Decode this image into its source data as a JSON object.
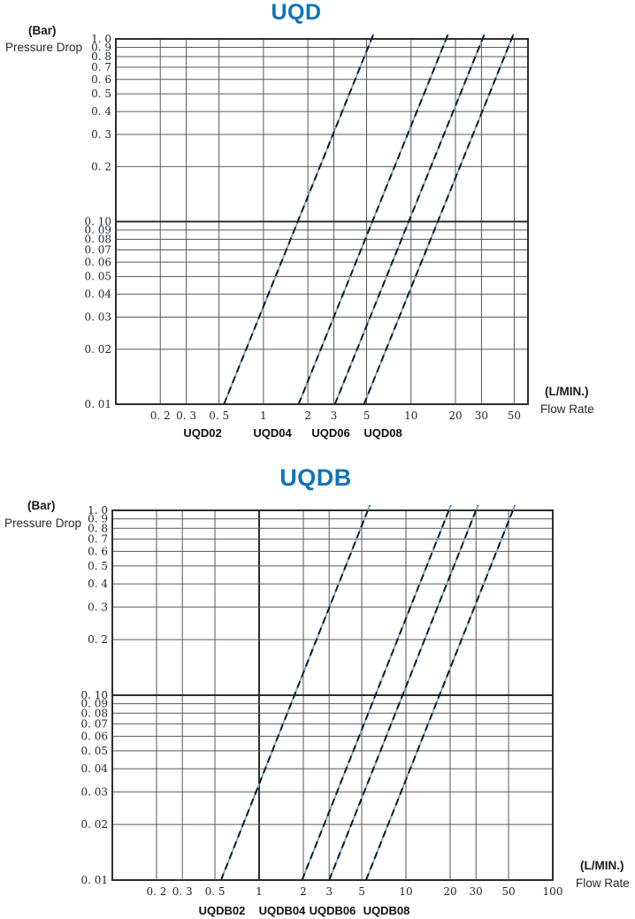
{
  "style": {
    "title_color": "#0e73ba",
    "grid_color": "#585858",
    "frame_color": "#2d2d2d",
    "tick_color": "#1f2430",
    "line_base_color": "#6ba6c8",
    "line_dash_color": "#17191c"
  },
  "chart_data": [
    {
      "type": "line",
      "title": "UQD",
      "x_scale": "log",
      "y_scale": "log",
      "xunit": "(L/MIN.)",
      "xlabel": "Flow Rate",
      "yunit": "(Bar)",
      "ylabel": "Pressure Drop",
      "xlim": [
        0.1,
        62
      ],
      "ylim": [
        0.01,
        1.0
      ],
      "grid": true,
      "x_ticks": [
        0.2,
        0.3,
        0.5,
        1,
        2,
        3,
        5,
        10,
        20,
        30,
        50
      ],
      "x_tick_labels": [
        "0. 2",
        "0. 3",
        "0. 5",
        "1",
        "2",
        "3",
        "5",
        "10",
        "20",
        "30",
        "50"
      ],
      "y_ticks": [
        1.0,
        0.9,
        0.8,
        0.7,
        0.6,
        0.5,
        0.4,
        0.3,
        0.2,
        0.1,
        0.09,
        0.08,
        0.07,
        0.06,
        0.05,
        0.04,
        0.03,
        0.02,
        0.01
      ],
      "y_tick_labels": [
        "1. 0",
        "0. 9",
        "0. 8",
        "0. 7",
        "0. 6",
        "0. 5",
        "0. 4",
        "0. 3",
        "0. 2",
        "0. 10",
        "0. 09",
        "0. 08",
        "0. 07",
        "0. 06",
        "0. 05",
        "0. 04",
        "0. 03",
        "0. 02",
        "0. 01"
      ],
      "bold_x_values": [],
      "bold_y_values": [
        0.1
      ],
      "series": [
        {
          "name": "UQD02",
          "points": [
            [
              0.54,
              0.01
            ],
            [
              5.4,
              1.0
            ]
          ]
        },
        {
          "name": "UQD04",
          "points": [
            [
              1.73,
              0.01
            ],
            [
              17.3,
              1.0
            ]
          ]
        },
        {
          "name": "UQD06",
          "points": [
            [
              3.05,
              0.01
            ],
            [
              30.5,
              1.0
            ]
          ]
        },
        {
          "name": "UQD08",
          "points": [
            [
              4.8,
              0.01
            ],
            [
              48.0,
              1.0
            ]
          ]
        }
      ]
    },
    {
      "type": "line",
      "title": "UQDB",
      "x_scale": "log",
      "y_scale": "log",
      "xunit": "(L/MIN.)",
      "xlabel": "Flow Rate",
      "yunit": "(Bar)",
      "ylabel": "Pressure Drop",
      "xlim": [
        0.1,
        100
      ],
      "ylim": [
        0.01,
        1.0
      ],
      "grid": true,
      "x_ticks": [
        0.2,
        0.3,
        0.5,
        1,
        2,
        3,
        5,
        10,
        20,
        30,
        50,
        100
      ],
      "x_tick_labels": [
        "0. 2",
        "0. 3",
        "0. 5",
        "1",
        "2",
        "3",
        "5",
        "10",
        "20",
        "30",
        "50",
        "100"
      ],
      "y_ticks": [
        1.0,
        0.9,
        0.8,
        0.7,
        0.6,
        0.5,
        0.4,
        0.3,
        0.2,
        0.1,
        0.09,
        0.08,
        0.07,
        0.06,
        0.05,
        0.04,
        0.03,
        0.02,
        0.01
      ],
      "y_tick_labels": [
        "1. 0",
        "0. 9",
        "0. 8",
        "0. 7",
        "0. 6",
        "0. 5",
        "0. 4",
        "0. 3",
        "0. 2",
        "0. 10",
        "0. 09",
        "0. 08",
        "0. 07",
        "0. 06",
        "0. 05",
        "0. 04",
        "0. 03",
        "0. 02",
        "0. 01"
      ],
      "bold_x_values": [
        1
      ],
      "bold_y_values": [
        0.1
      ],
      "series": [
        {
          "name": "UQDB02",
          "points": [
            [
              0.55,
              0.01
            ],
            [
              5.5,
              1.0
            ]
          ]
        },
        {
          "name": "UQDB04",
          "points": [
            [
              1.96,
              0.01
            ],
            [
              19.6,
              1.0
            ]
          ]
        },
        {
          "name": "UQDB06",
          "points": [
            [
              3.0,
              0.01
            ],
            [
              30.0,
              1.0
            ]
          ]
        },
        {
          "name": "UQDB08",
          "points": [
            [
              5.35,
              0.01
            ],
            [
              53.5,
              1.0
            ]
          ]
        }
      ]
    }
  ]
}
